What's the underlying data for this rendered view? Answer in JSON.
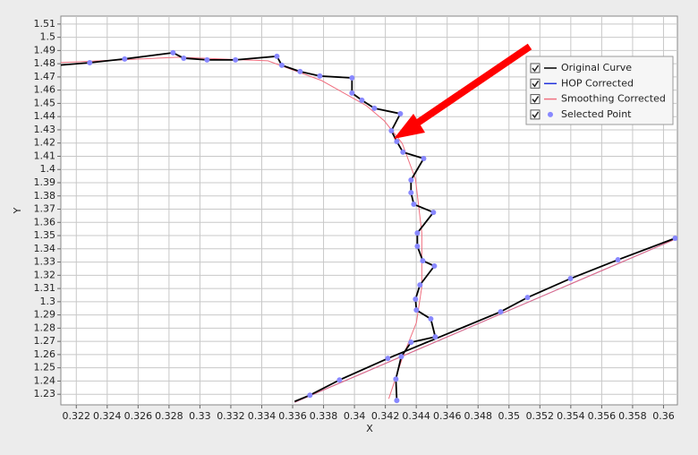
{
  "chart_data": {
    "type": "line",
    "x_label": "X",
    "y_label": "Y",
    "xlim": [
      0.321,
      0.3609
    ],
    "ylim": [
      1.222,
      1.516
    ],
    "xticks": [
      0.322,
      0.324,
      0.326,
      0.328,
      0.33,
      0.332,
      0.334,
      0.336,
      0.338,
      0.34,
      0.342,
      0.344,
      0.346,
      0.348,
      0.35,
      0.352,
      0.354,
      0.356,
      0.358,
      0.36
    ],
    "yticks": [
      1.23,
      1.24,
      1.25,
      1.26,
      1.27,
      1.28,
      1.29,
      1.3,
      1.31,
      1.32,
      1.33,
      1.34,
      1.35,
      1.36,
      1.37,
      1.38,
      1.39,
      1.4,
      1.41,
      1.42,
      1.43,
      1.44,
      1.45,
      1.46,
      1.47,
      1.48,
      1.49,
      1.5,
      1.51
    ],
    "grid": true,
    "legend_position": "upper right",
    "series": [
      {
        "name": "Original Curve",
        "color": "#000000",
        "mode": "line",
        "x": [
          0.321,
          0.32287,
          0.32513,
          0.32826,
          0.32895,
          0.33046,
          0.3323,
          0.33498,
          0.3353,
          0.33648,
          0.33776,
          0.33984,
          0.33984,
          0.34048,
          0.34129,
          0.34297,
          0.34239,
          0.34274,
          0.34314,
          0.34448,
          0.34366,
          0.34366,
          0.34384,
          0.34511,
          0.34407,
          0.34407,
          0.34442,
          0.34517,
          0.34424,
          0.34395,
          0.34401,
          0.34494,
          0.34523,
          0.34366,
          0.34303,
          0.34268,
          0.34274,
          null,
          0.33613,
          0.33712,
          0.33903,
          0.34216,
          0.34946,
          0.3512,
          0.35398,
          0.35705,
          0.36075
        ],
        "values": [
          1.479,
          1.4808,
          1.4836,
          1.4883,
          1.4842,
          1.4829,
          1.4829,
          1.4856,
          1.4788,
          1.4741,
          1.4707,
          1.4693,
          1.4578,
          1.4524,
          1.4463,
          1.4422,
          1.4293,
          1.4212,
          1.4131,
          1.4083,
          1.392,
          1.3825,
          1.3737,
          1.3676,
          1.352,
          1.3419,
          1.331,
          1.327,
          1.3127,
          1.3019,
          1.2937,
          1.287,
          1.2734,
          1.2693,
          1.2585,
          1.2415,
          1.2253,
          null,
          1.2246,
          1.2293,
          1.2408,
          1.2571,
          1.2924,
          1.3032,
          1.3175,
          1.3317,
          1.348
        ]
      },
      {
        "name": "HOP Corrected",
        "color": "#2233dd",
        "mode": "line",
        "x": [
          0.33613,
          0.36075
        ],
        "values": [
          1.2239,
          1.3473
        ]
      },
      {
        "name": "Smoothing Corrected",
        "color": "#f07080",
        "mode": "line",
        "x": [
          0.32096,
          0.3286,
          0.3344,
          0.33787,
          0.34077,
          0.34193,
          0.34309,
          0.34395,
          0.34436,
          0.34436,
          0.34401,
          0.34309,
          0.34222,
          null,
          0.33613,
          0.36075
        ],
        "values": [
          1.4808,
          1.4849,
          1.4822,
          1.4673,
          1.4483,
          1.4368,
          1.4198,
          1.3927,
          1.352,
          1.3113,
          1.2842,
          1.2571,
          1.2266,
          null,
          1.2239,
          1.3473
        ]
      },
      {
        "name": "Selected Point",
        "color": "#8888ff",
        "mode": "markers",
        "x": [
          0.32287,
          0.32513,
          0.32826,
          0.32895,
          0.33046,
          0.3323,
          0.33498,
          0.3353,
          0.33648,
          0.33776,
          0.33984,
          0.33984,
          0.34048,
          0.34129,
          0.34297,
          0.34239,
          0.34274,
          0.34314,
          0.34448,
          0.34366,
          0.34366,
          0.34384,
          0.34511,
          0.34407,
          0.34407,
          0.34442,
          0.34517,
          0.34424,
          0.34395,
          0.34401,
          0.34494,
          0.34523,
          0.34366,
          0.34303,
          0.34268,
          0.34274,
          0.33712,
          0.33903,
          0.34216,
          0.34946,
          0.3512,
          0.35398,
          0.35705,
          0.36075
        ],
        "values": [
          1.4808,
          1.4836,
          1.4883,
          1.4842,
          1.4829,
          1.4829,
          1.4856,
          1.4788,
          1.4741,
          1.4707,
          1.4693,
          1.4578,
          1.4524,
          1.4463,
          1.4422,
          1.4293,
          1.4212,
          1.4131,
          1.4083,
          1.392,
          1.3825,
          1.3737,
          1.3676,
          1.352,
          1.3419,
          1.331,
          1.327,
          1.3127,
          1.3019,
          1.2937,
          1.287,
          1.2734,
          1.2693,
          1.2585,
          1.2415,
          1.2253,
          1.2293,
          1.2408,
          1.2571,
          1.2924,
          1.3032,
          1.3175,
          1.3317,
          1.348
        ]
      }
    ]
  }
}
